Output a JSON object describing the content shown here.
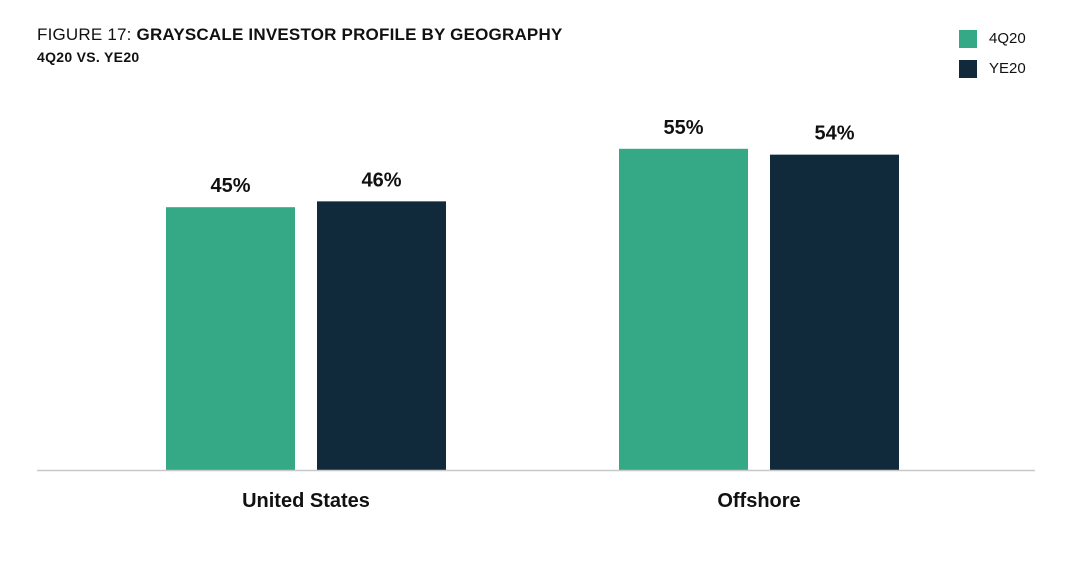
{
  "figure": {
    "prefix": "FIGURE 17:",
    "title": "GRAYSCALE INVESTOR PROFILE BY GEOGRAPHY",
    "subtitle": "4Q20 VS. YE20"
  },
  "legend": [
    {
      "label": "4Q20",
      "color": "#35a886"
    },
    {
      "label": "YE20",
      "color": "#102a3b"
    }
  ],
  "chart_data": {
    "type": "bar",
    "title": "FIGURE 17: GRAYSCALE INVESTOR PROFILE BY GEOGRAPHY",
    "subtitle": "4Q20 VS. YE20",
    "categories": [
      "United States",
      "Offshore"
    ],
    "series": [
      {
        "name": "4Q20",
        "values": [
          45,
          55
        ],
        "labels": [
          "45%",
          "55%"
        ],
        "color": "#35a886"
      },
      {
        "name": "YE20",
        "values": [
          46,
          54
        ],
        "labels": [
          "46%",
          "54%"
        ],
        "color": "#102a3b"
      }
    ],
    "ylim": [
      0,
      100
    ],
    "grid": false,
    "legend_position": "top-right",
    "xlabel": "",
    "ylabel": ""
  }
}
